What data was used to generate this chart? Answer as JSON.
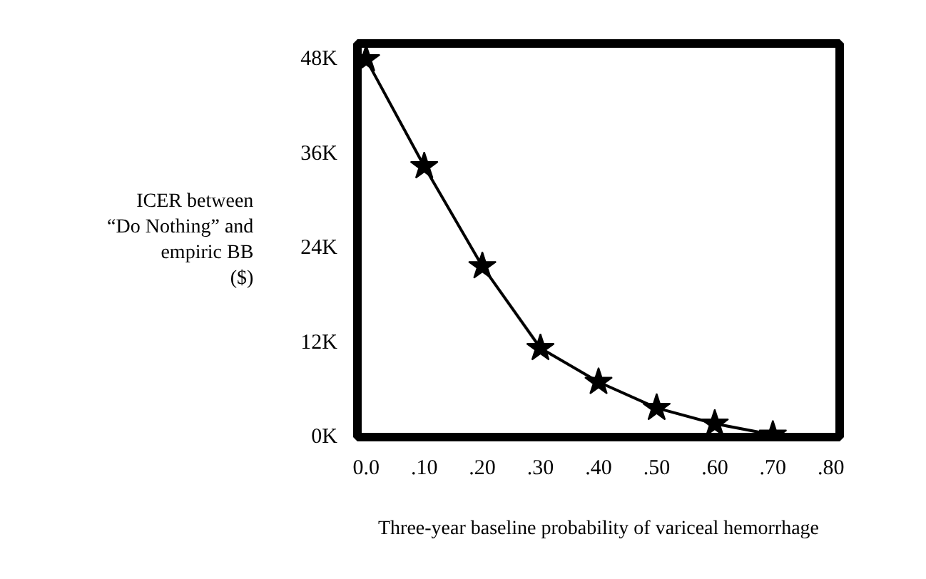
{
  "chart_data": {
    "type": "line",
    "xlabel": "Three-year baseline probability of variceal hemorrhage",
    "ylabel": "ICER between\n“Do Nothing” and\nempiric BB\n($)",
    "x": [
      0.0,
      0.1,
      0.2,
      0.3,
      0.4,
      0.5,
      0.6,
      0.7
    ],
    "series": [
      {
        "color": "#000000",
        "values": [
          48000,
          34400,
          21700,
          11300,
          7000,
          3700,
          1700,
          300
        ]
      }
    ],
    "xlim": [
      -0.015,
      0.815
    ],
    "ylim": [
      0,
      50000
    ],
    "xticks": [
      {
        "value": 0.0,
        "label": "0.0"
      },
      {
        "value": 0.1,
        "label": ".10"
      },
      {
        "value": 0.2,
        "label": ".20"
      },
      {
        "value": 0.3,
        "label": ".30"
      },
      {
        "value": 0.4,
        "label": ".40"
      },
      {
        "value": 0.5,
        "label": ".50"
      },
      {
        "value": 0.6,
        "label": ".60"
      },
      {
        "value": 0.7,
        "label": ".70"
      },
      {
        "value": 0.8,
        "label": ".80"
      }
    ],
    "yticks": [
      {
        "value": 0,
        "label": "0K"
      },
      {
        "value": 12000,
        "label": "12K"
      },
      {
        "value": 24000,
        "label": "24K"
      },
      {
        "value": 36000,
        "label": "36K"
      },
      {
        "value": 48000,
        "label": "48K"
      }
    ],
    "grid": false,
    "marker": "star",
    "line_style": "solid"
  }
}
